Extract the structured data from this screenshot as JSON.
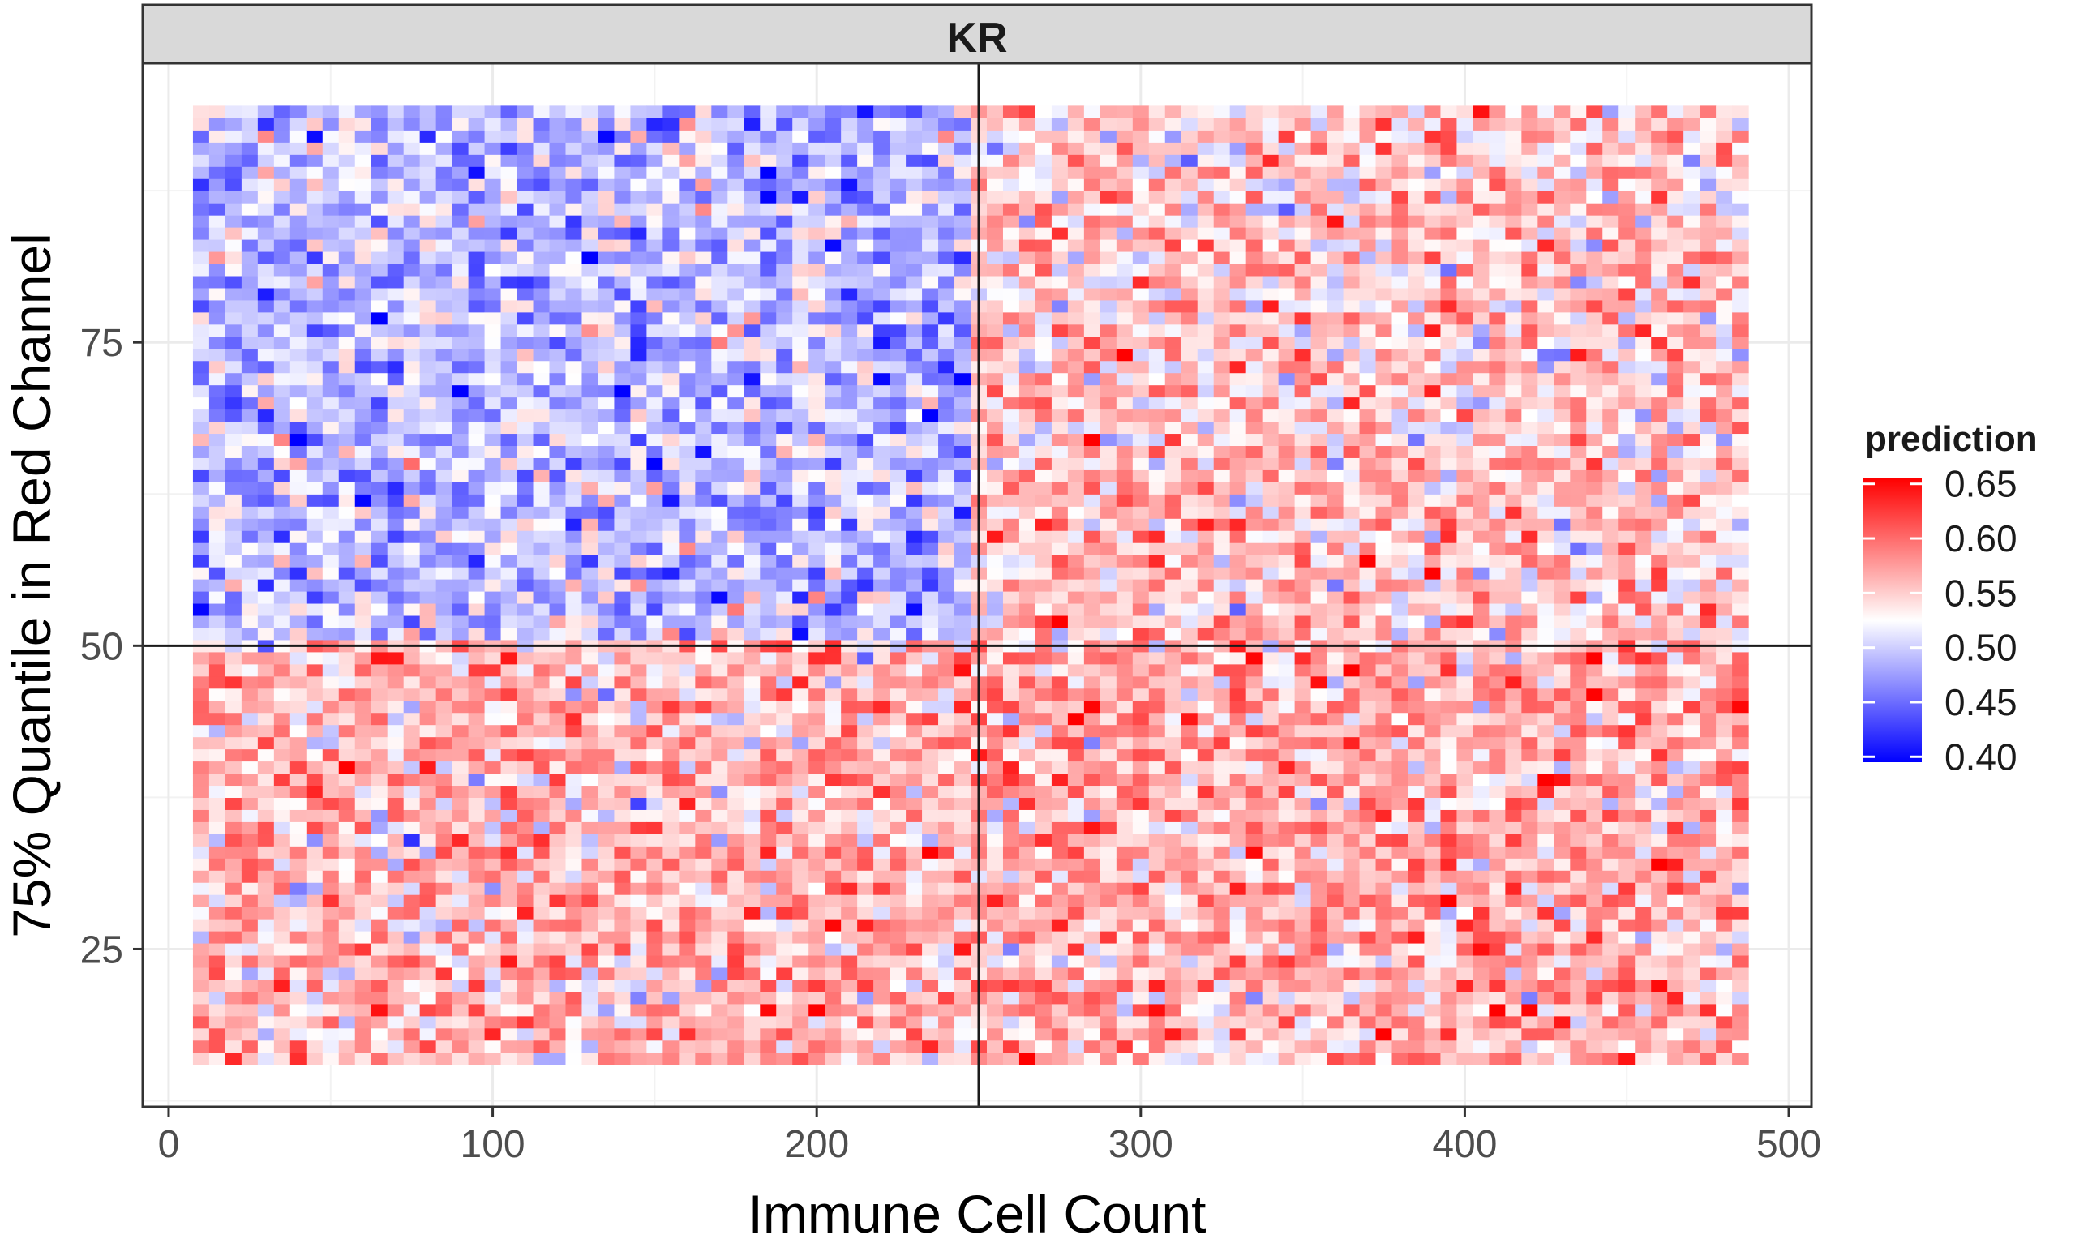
{
  "chart_data": {
    "type": "heatmap",
    "facet_label": "KR",
    "xlabel": "Immune Cell Count",
    "ylabel": "75% Quantile in Red Channel",
    "xlim": [
      -8,
      507
    ],
    "ylim": [
      12,
      98
    ],
    "x_ticks": [
      0,
      100,
      200,
      300,
      400,
      500
    ],
    "x_tick_labels": [
      "0",
      "100",
      "200",
      "300",
      "400",
      "500"
    ],
    "y_ticks": [
      25,
      50,
      75
    ],
    "y_tick_labels": [
      "25",
      "50",
      "75"
    ],
    "grid": true,
    "cells": {
      "x_start": 10,
      "x_end": 485,
      "x_step": 5,
      "y_start": 16,
      "y_end": 94,
      "y_step": 1,
      "value_note": "prediction by region: x<250 & y>50 ≈0.49, x>=250 & y>50 ≈0.55, y<=50 ≈0.56, with noise in [0.40, 0.65]",
      "mean_upper_left": 0.49,
      "mean_upper_right": 0.55,
      "mean_lower_left": 0.56,
      "mean_lower_right": 0.565,
      "noise_sd": 0.035
    },
    "reference_lines": {
      "vline_x": 250,
      "hline_y": 50
    },
    "legend": {
      "title": "prediction",
      "placement": "right",
      "ticks": [
        0.65,
        0.6,
        0.55,
        0.5,
        0.45,
        0.4
      ],
      "tick_labels": [
        "0.65",
        "0.60",
        "0.55",
        "0.50",
        "0.45",
        "0.40"
      ],
      "range": [
        0.395,
        0.655
      ],
      "midpoint": 0.525,
      "low_color": "#0000ff",
      "mid_color": "#ffffff",
      "high_color": "#ff0000"
    }
  }
}
